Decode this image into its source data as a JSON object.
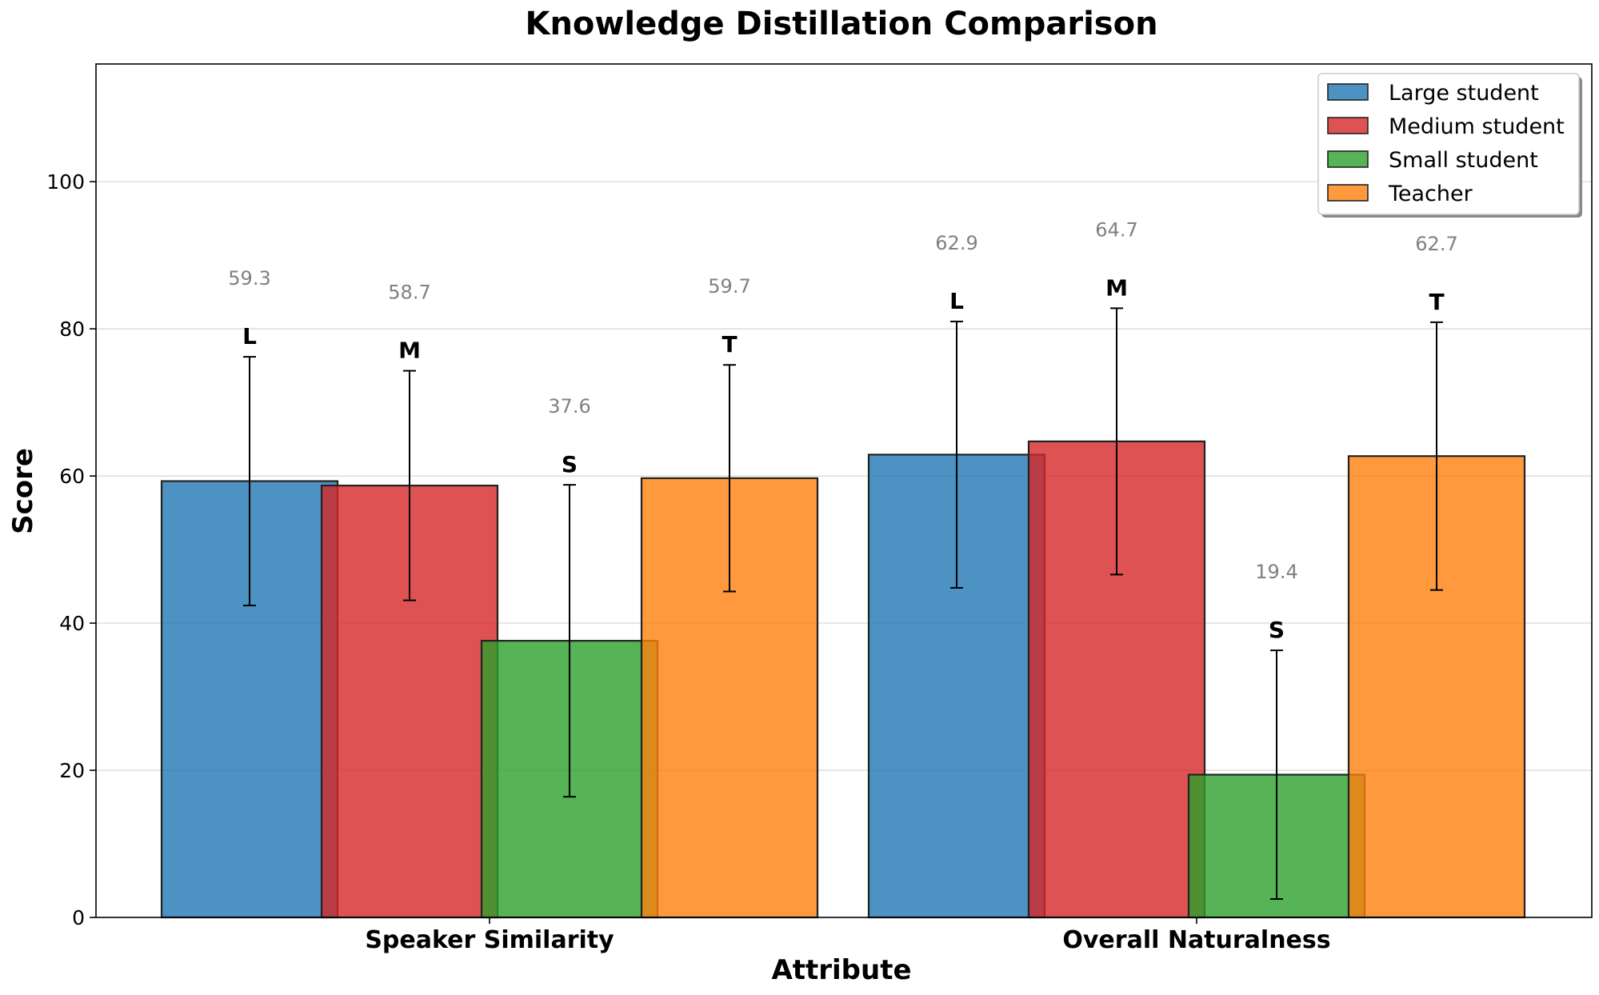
{
  "chart_data": {
    "type": "bar",
    "title": "Knowledge Distillation Comparison",
    "xlabel": "Attribute",
    "ylabel": "Score",
    "ylim": [
      0,
      116
    ],
    "yticks": [
      "0",
      "20",
      "40",
      "60",
      "80",
      "100"
    ],
    "ytick_values": [
      0,
      20,
      40,
      60,
      80,
      100
    ],
    "grid": true,
    "legend_position": "top-right",
    "categories": [
      "Speaker Similarity",
      "Overall Naturalness"
    ],
    "series": [
      {
        "name": "Large student",
        "letter": "L",
        "color": "#1f77b4",
        "values": [
          59.3,
          62.9
        ],
        "value_labels": [
          "59.3",
          "62.9"
        ],
        "err": [
          16.9,
          18.1
        ]
      },
      {
        "name": "Medium student",
        "letter": "M",
        "color": "#d62728",
        "values": [
          58.7,
          64.7
        ],
        "value_labels": [
          "58.7",
          "64.7"
        ],
        "err": [
          15.6,
          18.1
        ]
      },
      {
        "name": "Small student",
        "letter": "S",
        "color": "#2ca02c",
        "values": [
          37.6,
          19.4
        ],
        "value_labels": [
          "37.6",
          "19.4"
        ],
        "err": [
          21.2,
          16.9
        ]
      },
      {
        "name": "Teacher",
        "letter": "T",
        "color": "#ff7f0e",
        "values": [
          59.7,
          62.7
        ],
        "value_labels": [
          "59.7",
          "62.7"
        ],
        "err": [
          15.4,
          18.2
        ]
      }
    ]
  }
}
